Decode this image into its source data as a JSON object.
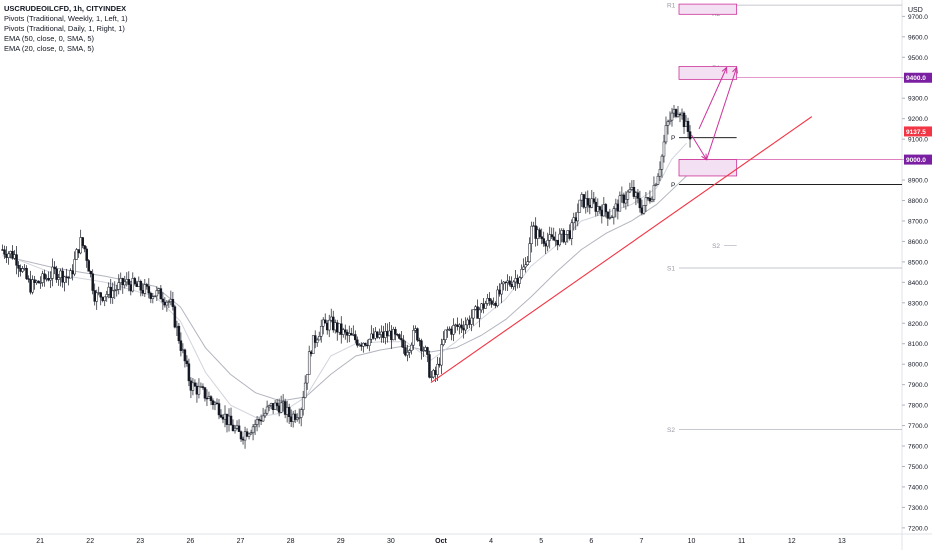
{
  "legend": {
    "title": "USCRUDEOILCFD, 1h, CITYINDEX",
    "lines": [
      "Pivots (Traditional, Weekly, 1, Left, 1)",
      "Pivots (Traditional, Daily, 1, Right, 1)",
      "EMA (50, close, 0, SMA, 5)",
      "EMA (20, close, 0, SMA, 5)"
    ]
  },
  "colors": {
    "background": "#ffffff",
    "candle": "#131722",
    "ema50": "#b2b5be",
    "ema20": "#d1d4dc",
    "trendline": "#f23645",
    "drawing": "#cc3399",
    "zone_fill": "#f3e0f3",
    "price_badge": "#f23645",
    "level_badge": "#7b1fa2",
    "pivot_weekly": "#b2b5be",
    "pivot_daily": "#000000"
  },
  "chart_data": {
    "type": "candlestick",
    "title": "USCRUDEOILCFD, 1h, CITYINDEX",
    "currency": "USD",
    "y_range": [
      7170,
      9780
    ],
    "y_ticks": [
      "7200.0",
      "7300.0",
      "7400.0",
      "7500.0",
      "7600.0",
      "7700.0",
      "7800.0",
      "7900.0",
      "8000.0",
      "8100.0",
      "8200.0",
      "8300.0",
      "8400.0",
      "8500.0",
      "8600.0",
      "8700.0",
      "8800.0",
      "8900.0",
      "9000.0",
      "9100.0",
      "9200.0",
      "9300.0",
      "9400.0",
      "9500.0",
      "9600.0",
      "9700.0"
    ],
    "x_labels": [
      {
        "pos": 0.2,
        "text": "21"
      },
      {
        "pos": 1.2,
        "text": "22"
      },
      {
        "pos": 2.2,
        "text": "23"
      },
      {
        "pos": 3.2,
        "text": "26"
      },
      {
        "pos": 4.2,
        "text": "27"
      },
      {
        "pos": 5.2,
        "text": "28"
      },
      {
        "pos": 6.2,
        "text": "29"
      },
      {
        "pos": 7.2,
        "text": "30"
      },
      {
        "pos": 8.2,
        "text": "Oct"
      },
      {
        "pos": 9.2,
        "text": "4"
      },
      {
        "pos": 10.2,
        "text": "5"
      },
      {
        "pos": 11.2,
        "text": "6"
      },
      {
        "pos": 12.2,
        "text": "7"
      },
      {
        "pos": 13.2,
        "text": "10"
      },
      {
        "pos": 14.2,
        "text": "11"
      },
      {
        "pos": 15.2,
        "text": "12"
      },
      {
        "pos": 16.2,
        "text": "13"
      }
    ],
    "x_range": [
      -0.6,
      17.4
    ],
    "close_series": [
      [
        -0.55,
        8560
      ],
      [
        -0.3,
        8530
      ],
      [
        0.0,
        8380
      ],
      [
        0.25,
        8410
      ],
      [
        0.5,
        8450
      ],
      [
        0.8,
        8420
      ],
      [
        1.0,
        8600
      ],
      [
        1.1,
        8560
      ],
      [
        1.3,
        8330
      ],
      [
        1.6,
        8350
      ],
      [
        1.9,
        8400
      ],
      [
        2.1,
        8380
      ],
      [
        2.4,
        8350
      ],
      [
        2.6,
        8340
      ],
      [
        2.8,
        8300
      ],
      [
        3.0,
        8100
      ],
      [
        3.2,
        7900
      ],
      [
        3.5,
        7850
      ],
      [
        3.8,
        7780
      ],
      [
        4.0,
        7700
      ],
      [
        4.2,
        7650
      ],
      [
        4.5,
        7710
      ],
      [
        4.8,
        7790
      ],
      [
        5.0,
        7800
      ],
      [
        5.2,
        7740
      ],
      [
        5.4,
        7780
      ],
      [
        5.6,
        8080
      ],
      [
        5.8,
        8180
      ],
      [
        6.0,
        8200
      ],
      [
        6.3,
        8140
      ],
      [
        6.6,
        8110
      ],
      [
        6.9,
        8130
      ],
      [
        7.2,
        8150
      ],
      [
        7.5,
        8070
      ],
      [
        7.7,
        8160
      ],
      [
        7.9,
        8050
      ],
      [
        8.0,
        7930
      ],
      [
        8.1,
        7950
      ],
      [
        8.3,
        8160
      ],
      [
        8.5,
        8180
      ],
      [
        8.7,
        8200
      ],
      [
        8.9,
        8250
      ],
      [
        9.1,
        8300
      ],
      [
        9.3,
        8320
      ],
      [
        9.5,
        8390
      ],
      [
        9.7,
        8420
      ],
      [
        9.9,
        8480
      ],
      [
        10.0,
        8660
      ],
      [
        10.2,
        8620
      ],
      [
        10.4,
        8600
      ],
      [
        10.6,
        8620
      ],
      [
        10.8,
        8650
      ],
      [
        11.0,
        8800
      ],
      [
        11.2,
        8780
      ],
      [
        11.4,
        8760
      ],
      [
        11.6,
        8730
      ],
      [
        11.8,
        8800
      ],
      [
        12.0,
        8850
      ],
      [
        12.2,
        8760
      ],
      [
        12.4,
        8830
      ],
      [
        12.6,
        9000
      ],
      [
        12.7,
        9160
      ],
      [
        12.8,
        9210
      ],
      [
        12.95,
        9260
      ],
      [
        13.1,
        9150
      ],
      [
        13.2,
        9110
      ]
    ],
    "ema50_series": [
      [
        -0.55,
        8530
      ],
      [
        0.5,
        8470
      ],
      [
        1.5,
        8430
      ],
      [
        2.5,
        8380
      ],
      [
        3.0,
        8280
      ],
      [
        3.5,
        8080
      ],
      [
        4.0,
        7950
      ],
      [
        4.5,
        7860
      ],
      [
        5.0,
        7820
      ],
      [
        5.5,
        7840
      ],
      [
        6.0,
        7950
      ],
      [
        6.5,
        8040
      ],
      [
        7.0,
        8070
      ],
      [
        7.5,
        8090
      ],
      [
        8.0,
        8060
      ],
      [
        8.5,
        8080
      ],
      [
        9.0,
        8140
      ],
      [
        9.5,
        8220
      ],
      [
        10.0,
        8330
      ],
      [
        10.5,
        8450
      ],
      [
        11.0,
        8560
      ],
      [
        11.5,
        8640
      ],
      [
        12.0,
        8700
      ],
      [
        12.5,
        8780
      ],
      [
        12.8,
        8850
      ],
      [
        13.1,
        8920
      ]
    ],
    "ema20_series": [
      [
        -0.55,
        8540
      ],
      [
        0.5,
        8440
      ],
      [
        1.5,
        8400
      ],
      [
        2.5,
        8330
      ],
      [
        3.0,
        8210
      ],
      [
        3.5,
        7960
      ],
      [
        4.0,
        7800
      ],
      [
        4.5,
        7740
      ],
      [
        5.0,
        7760
      ],
      [
        5.5,
        7840
      ],
      [
        6.0,
        8040
      ],
      [
        6.5,
        8100
      ],
      [
        7.0,
        8110
      ],
      [
        7.5,
        8110
      ],
      [
        8.0,
        8020
      ],
      [
        8.5,
        8110
      ],
      [
        9.0,
        8220
      ],
      [
        9.5,
        8320
      ],
      [
        10.0,
        8480
      ],
      [
        10.5,
        8580
      ],
      [
        11.0,
        8700
      ],
      [
        11.5,
        8740
      ],
      [
        12.0,
        8780
      ],
      [
        12.5,
        8860
      ],
      [
        12.8,
        9000
      ],
      [
        13.1,
        9080
      ]
    ],
    "trendline": {
      "from": [
        8.0,
        7910
      ],
      "to": [
        15.6,
        9210
      ]
    },
    "arrows": [
      {
        "from": [
          13.2,
          9120
        ],
        "to": [
          13.5,
          9000
        ]
      },
      {
        "from": [
          13.5,
          9000
        ],
        "to": [
          14.1,
          9450
        ]
      },
      {
        "from": [
          13.35,
          9150
        ],
        "to": [
          13.9,
          9450
        ]
      }
    ],
    "zones": [
      {
        "x": [
          12.95,
          14.1
        ],
        "y": [
          9392,
          9455
        ]
      },
      {
        "x": [
          12.95,
          14.1
        ],
        "y": [
          8920,
          9000
        ]
      },
      {
        "x": [
          12.95,
          14.1
        ],
        "y": [
          9710,
          9760
        ]
      }
    ],
    "levels": [
      {
        "value": 9400.0,
        "label": "9400.0",
        "x_start": 12.95,
        "style": "drawing"
      },
      {
        "value": 9000.0,
        "label": "9000.0",
        "x_start": 12.95,
        "style": "drawing"
      },
      {
        "value": 9107.0,
        "x_start": 12.95,
        "x_end": 14.1,
        "style": "pivot_daily",
        "label": "P"
      },
      {
        "value": 8878.0,
        "x_start": 12.95,
        "style": "pivot_daily",
        "label": "P"
      },
      {
        "value": 9755.0,
        "x_start": 12.95,
        "style": "pivot_weekly",
        "label": "R1"
      },
      {
        "value": 8470.0,
        "x_start": 12.95,
        "style": "pivot_weekly",
        "label": "S1"
      },
      {
        "value": 7680.0,
        "x_start": 12.95,
        "style": "pivot_weekly",
        "label": "S2"
      },
      {
        "value": 8580.0,
        "x_start": 13.85,
        "x_end": 14.1,
        "style": "pivot_weekly",
        "label": "S2"
      },
      {
        "value": 9715.0,
        "x_start": 13.85,
        "x_end": 14.1,
        "style": "pivot_weekly",
        "label": "R2"
      },
      {
        "value": 9450.0,
        "x_start": 13.85,
        "x_end": 14.1,
        "style": "pivot_weekly",
        "label": "R1"
      },
      {
        "value": 8940.0,
        "x_start": 13.85,
        "x_end": 14.1,
        "style": "pivot_weekly",
        "label": "S1"
      }
    ],
    "last_price": {
      "value": 9137.5,
      "label": "9137.5"
    }
  }
}
